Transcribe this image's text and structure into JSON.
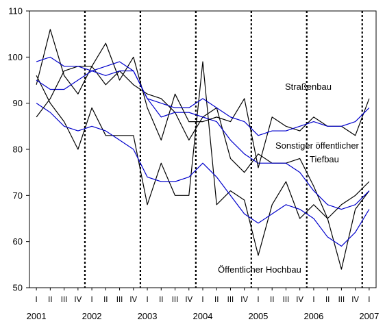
{
  "chart_data": {
    "type": "line",
    "title": "",
    "xlabel": "",
    "ylabel": "",
    "ylim": [
      50,
      110
    ],
    "yticks": [
      50,
      60,
      70,
      80,
      90,
      100,
      110
    ],
    "grid": false,
    "quarter_labels": [
      "I",
      "II",
      "III",
      "IV"
    ],
    "year_labels": [
      "2001",
      "2002",
      "2003",
      "2004",
      "2005",
      "2006",
      "2007"
    ],
    "annotations": [
      "Straßenbau",
      "Sonstiger öffentlicher",
      "Tiefbau",
      "Öffentlicher  Hochbau"
    ],
    "colors": {
      "raw": "#000000",
      "trend": "#0000cc",
      "year_divider": "#000000"
    },
    "series": [
      {
        "values": [
          96,
          90,
          86,
          80,
          89,
          83,
          83,
          83,
          68,
          77,
          70,
          70,
          99,
          68,
          71,
          69,
          57,
          68,
          73,
          65,
          68,
          65,
          54,
          67,
          71
        ]
      },
      {
        "values": [
          90,
          88,
          85,
          84,
          85,
          84,
          82,
          80,
          74,
          73,
          73,
          74,
          77,
          74,
          70,
          66,
          64,
          66,
          68,
          67,
          65,
          61,
          59,
          62,
          67
        ]
      },
      {
        "values": [
          94,
          106,
          96,
          92,
          98,
          94,
          97,
          94,
          92,
          91,
          88,
          82,
          87,
          89,
          78,
          75,
          79,
          77,
          77,
          78,
          72,
          65,
          68,
          70,
          73
        ]
      },
      {
        "values": [
          95,
          93,
          93,
          95,
          97,
          96,
          97,
          97,
          91,
          87,
          88,
          88,
          87,
          86,
          82,
          79,
          77,
          77,
          77,
          75,
          71,
          68,
          67,
          68,
          71
        ]
      },
      {
        "values": [
          87,
          91,
          97,
          98,
          98,
          103,
          95,
          100,
          89,
          82,
          92,
          86,
          86,
          87,
          86,
          91,
          76,
          87,
          85,
          84,
          87,
          85,
          85,
          83,
          91
        ]
      },
      {
        "values": [
          99,
          100,
          98,
          98,
          97,
          98,
          99,
          97,
          91,
          90,
          89,
          89,
          91,
          89,
          87,
          86,
          83,
          84,
          84,
          85,
          86,
          85,
          85,
          86,
          89
        ]
      }
    ]
  }
}
